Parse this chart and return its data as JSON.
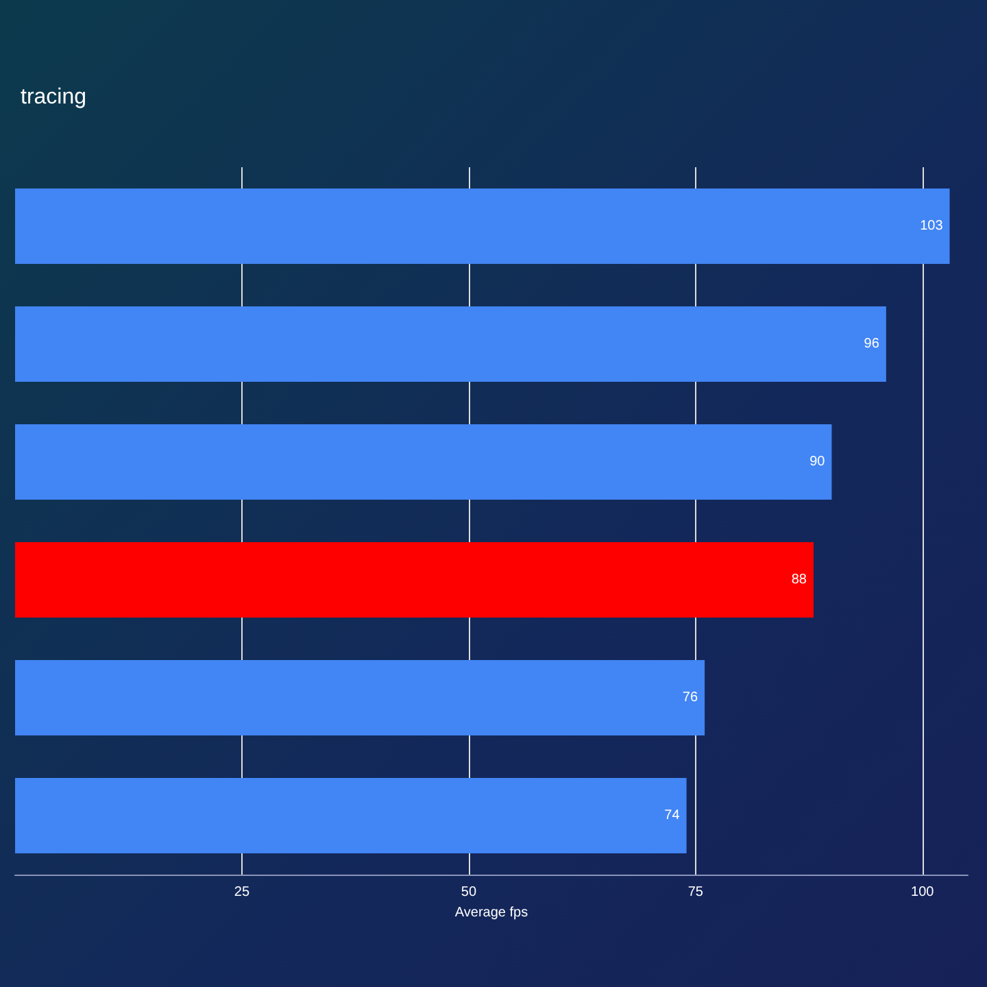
{
  "chart_data": {
    "type": "bar",
    "orientation": "horizontal",
    "title": "tracing",
    "xlabel": "Average fps",
    "categories": [
      null,
      null,
      null,
      null,
      null,
      null
    ],
    "values": [
      103,
      96,
      90,
      88,
      76,
      74
    ],
    "colors": [
      "#4285f4",
      "#4285f4",
      "#4285f4",
      "#ff0000",
      "#4285f4",
      "#4285f4"
    ],
    "xlim": [
      0,
      105
    ],
    "xticks": [
      25,
      50,
      75,
      100
    ],
    "grid": "x",
    "data_labels": true
  }
}
